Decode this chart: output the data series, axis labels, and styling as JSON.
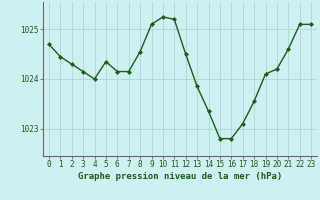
{
  "x": [
    0,
    1,
    2,
    3,
    4,
    5,
    6,
    7,
    8,
    9,
    10,
    11,
    12,
    13,
    14,
    15,
    16,
    17,
    18,
    19,
    20,
    21,
    22,
    23
  ],
  "y": [
    1024.7,
    1024.45,
    1024.3,
    1024.15,
    1024.0,
    1024.35,
    1024.15,
    1024.15,
    1024.55,
    1025.1,
    1025.25,
    1025.2,
    1024.5,
    1023.85,
    1023.35,
    1022.8,
    1022.8,
    1023.1,
    1023.55,
    1024.1,
    1024.2,
    1024.6,
    1025.1,
    1025.1
  ],
  "line_color": "#1a5c1a",
  "marker": "D",
  "marker_size": 2.0,
  "background_color": "#cff0f0",
  "grid_color": "#aad8d8",
  "xlabel": "Graphe pression niveau de la mer (hPa)",
  "xlabel_fontsize": 6.5,
  "xlabel_color": "#1a5c1a",
  "xlabel_bold": true,
  "yticks": [
    1023,
    1024,
    1025
  ],
  "ylim": [
    1022.45,
    1025.55
  ],
  "xlim": [
    -0.5,
    23.5
  ],
  "xtick_labels": [
    "0",
    "1",
    "2",
    "3",
    "4",
    "5",
    "6",
    "7",
    "8",
    "9",
    "10",
    "11",
    "12",
    "13",
    "14",
    "15",
    "16",
    "17",
    "18",
    "19",
    "20",
    "21",
    "22",
    "23"
  ],
  "tick_fontsize": 5.5,
  "tick_color": "#1a5c1a",
  "spine_color": "#666666",
  "linewidth": 1.0
}
